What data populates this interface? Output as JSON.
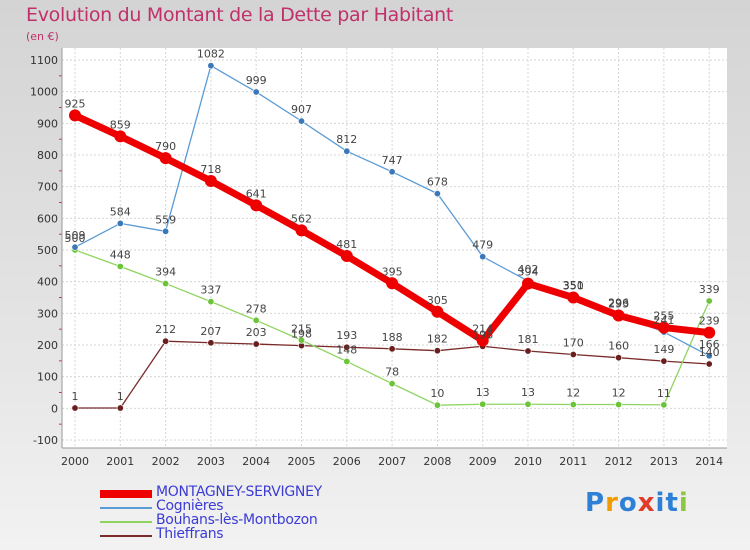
{
  "title": "Evolution du Montant de la Dette par Habitant",
  "unit": "(en €)",
  "logo": {
    "text": "Proxiti",
    "letters": [
      "P",
      "r",
      "o",
      "x",
      "i",
      "t",
      "i"
    ],
    "colors": [
      "#2e7fd6",
      "#f29b00",
      "#2e7fd6",
      "#e23b2a",
      "#2e7fd6",
      "#2e7fd6",
      "#8dc63f"
    ]
  },
  "chart_data": {
    "type": "line",
    "x": [
      2000,
      2001,
      2002,
      2003,
      2004,
      2005,
      2006,
      2007,
      2008,
      2009,
      2010,
      2011,
      2012,
      2013,
      2014
    ],
    "xticks": [
      "2000",
      "2001",
      "2002",
      "2003",
      "2004",
      "2005",
      "2006",
      "2007",
      "2008",
      "2009",
      "2010",
      "2011",
      "2012",
      "2013",
      "2014"
    ],
    "ylim": [
      -100,
      1100
    ],
    "yticks": [
      "-100",
      "0",
      "100",
      "200",
      "300",
      "400",
      "500",
      "600",
      "700",
      "800",
      "900",
      "1000",
      "1100"
    ],
    "ytick_values": [
      -100,
      0,
      100,
      200,
      300,
      400,
      500,
      600,
      700,
      800,
      900,
      1000,
      1100
    ],
    "grid": true,
    "legend_position": "bottom-left",
    "series": [
      {
        "name": "MONTAGNEY-SERVIGNEY",
        "color": "#ee0000",
        "point_color": "#ee0000",
        "width": 7,
        "marker_r": 6,
        "values": [
          925,
          859,
          790,
          718,
          641,
          562,
          481,
          395,
          305,
          214,
          394,
          350,
          293,
          255,
          239
        ],
        "labels": [
          "925",
          "859",
          "790",
          "718",
          "641",
          "562",
          "481",
          "395",
          "305",
          "214",
          "394",
          "350",
          "293",
          "255",
          "239"
        ]
      },
      {
        "name": "Cognières",
        "color": "#5a9bd5",
        "point_color": "#3a78b8",
        "width": 1.3,
        "marker_r": 3.2,
        "values": [
          509,
          584,
          559,
          1082,
          999,
          907,
          812,
          747,
          678,
          479,
          402,
          351,
          296,
          241,
          166
        ],
        "labels": [
          "509",
          "584",
          "559",
          "1082",
          "999",
          "907",
          "812",
          "747",
          "678",
          "479",
          "402",
          "351",
          "296",
          "241",
          "166"
        ]
      },
      {
        "name": "Bouhans-lès-Montbozon",
        "color": "#8fd460",
        "point_color": "#6cc43a",
        "width": 1.3,
        "marker_r": 3.2,
        "values": [
          500,
          448,
          394,
          337,
          278,
          215,
          148,
          78,
          10,
          13,
          13,
          12,
          12,
          11,
          339
        ],
        "labels": [
          "500",
          "448",
          "394",
          "337",
          "278",
          "215",
          "148",
          "78",
          "10",
          "13",
          "13",
          "12",
          "12",
          "11",
          "339"
        ]
      },
      {
        "name": "Thieffrans",
        "color": "#7a2a2a",
        "point_color": "#6a1e1e",
        "width": 1.3,
        "marker_r": 3.2,
        "values": [
          1,
          1,
          212,
          207,
          203,
          198,
          193,
          188,
          182,
          196,
          181,
          170,
          160,
          149,
          140
        ],
        "labels": [
          "1",
          "1",
          "212",
          "207",
          "203",
          "198",
          "193",
          "188",
          "182",
          "196",
          "181",
          "170",
          "160",
          "149",
          "140"
        ]
      }
    ]
  }
}
